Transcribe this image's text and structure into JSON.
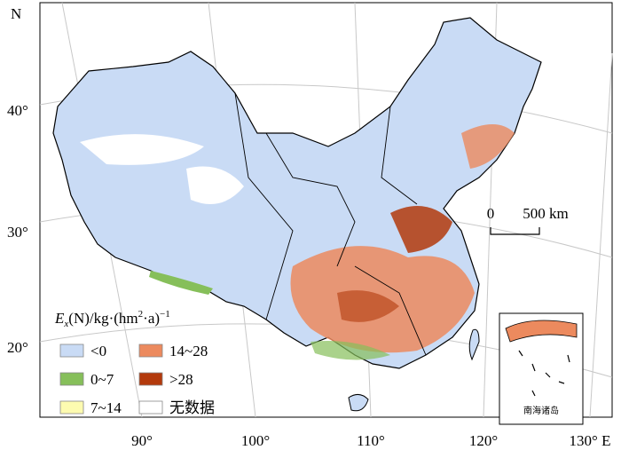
{
  "map": {
    "north_label": "N",
    "latitude_labels": [
      "40°",
      "30°",
      "20°"
    ],
    "longitude_labels": [
      "90°",
      "100°",
      "110°",
      "120°",
      "130° E"
    ],
    "scale_bar": {
      "zero": "0",
      "length": "500 km"
    },
    "legend": {
      "title": {
        "symbol": "E",
        "subscript": "x",
        "middle": "(N)/kg·(hm",
        "superscript_1": "2",
        "tail": "·a)",
        "superscript_2": "−1"
      },
      "items": [
        {
          "label": "<0",
          "color": "#c9dbf5"
        },
        {
          "label": "0~7",
          "color": "#86bf5a"
        },
        {
          "label": "7~14",
          "color": "#fdfbb0"
        },
        {
          "label": "14~28",
          "color": "#ec8a5e"
        },
        {
          "label": ">28",
          "color": "#b33a0c"
        },
        {
          "label": "无数据",
          "color": "#ffffff"
        }
      ]
    },
    "inset_label": "南海诸岛"
  }
}
